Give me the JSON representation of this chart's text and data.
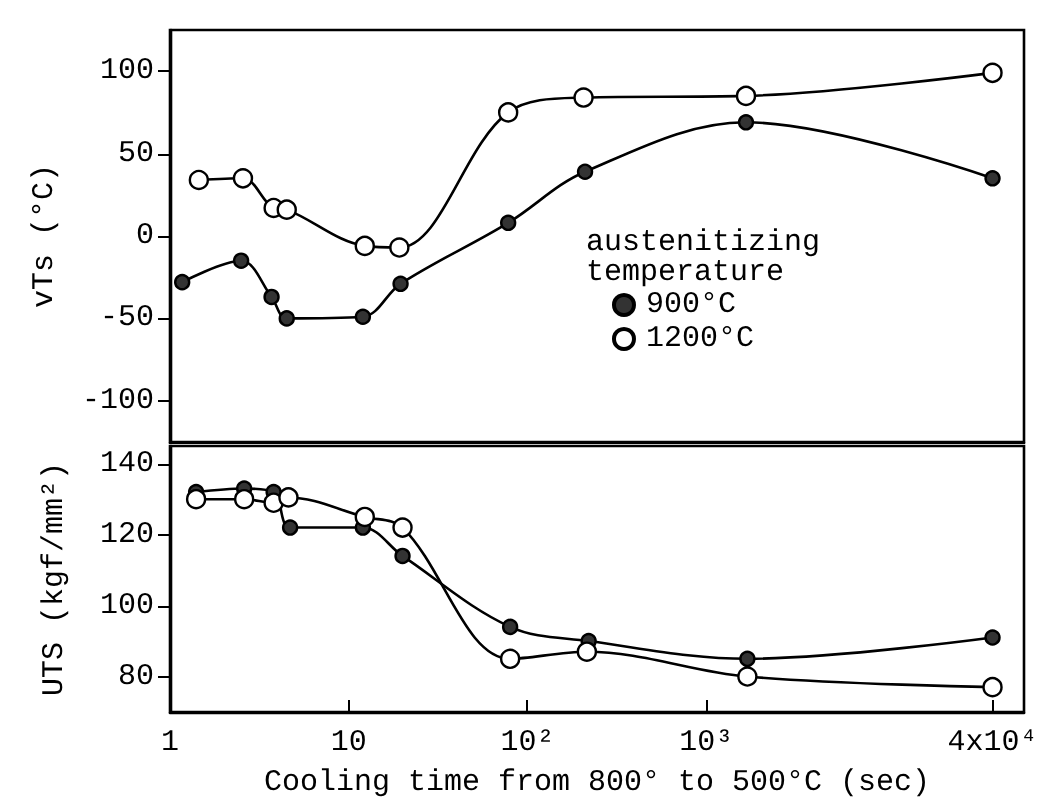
{
  "chart_data": [
    {
      "type": "line",
      "ylabel": "vTs (°C)",
      "legend_title": "austenitizing\ntemperature",
      "legend": "bottom right",
      "marker": "circle",
      "log": "x",
      "tick_labels": "y",
      "grid": false,
      "xlim": [
        1,
        60000
      ],
      "ylim": [
        -125,
        125
      ],
      "yticks": [
        -100,
        -50,
        0,
        50,
        100
      ],
      "series": [
        {
          "name": "900°C",
          "color": "#333333",
          "x": [
            1.17,
            2.5,
            3.7,
            4.5,
            12,
            19.5,
            78,
            210,
            1670,
            40000
          ],
          "values": [
            -28,
            -15,
            -37,
            -50,
            -49,
            -29,
            8,
            39,
            69,
            35
          ]
        },
        {
          "name": "1200°C",
          "color": "#ffffff",
          "x": [
            1.45,
            2.56,
            3.8,
            4.5,
            12.3,
            19.2,
            78,
            206,
            1670,
            40000
          ],
          "values": [
            34,
            35,
            17,
            16,
            -6,
            -7,
            75,
            84,
            85,
            99
          ]
        }
      ]
    },
    {
      "type": "line",
      "xlabel": "Cooling time from 800° to 500°C (sec)",
      "ylabel": "UTS (kgf/mm²)",
      "marker": "circle",
      "log": "x",
      "grid": false,
      "xlim": [
        1,
        60000
      ],
      "xticks": [
        1,
        10,
        {
          "value": 100,
          "label": "10²"
        },
        {
          "value": 1000,
          "label": "10³"
        },
        {
          "value": 40000,
          "label": "4x10⁴"
        }
      ],
      "ylim": [
        70,
        145
      ],
      "yticks": [
        80,
        100,
        120,
        140
      ],
      "series": [
        {
          "color": "#333333",
          "x": [
            1.4,
            2.6,
            3.8,
            4.7,
            12,
            20,
            80,
            220,
            1700,
            40000
          ],
          "values": [
            132,
            133,
            132,
            122,
            122,
            114,
            94,
            90,
            85,
            91
          ]
        },
        {
          "color": "#ffffff",
          "x": [
            1.4,
            2.6,
            3.8,
            4.6,
            12.3,
            20,
            80,
            215,
            1700,
            40000
          ],
          "values": [
            130,
            130,
            129,
            130.5,
            125,
            122,
            85,
            87,
            80,
            77
          ]
        }
      ]
    }
  ]
}
